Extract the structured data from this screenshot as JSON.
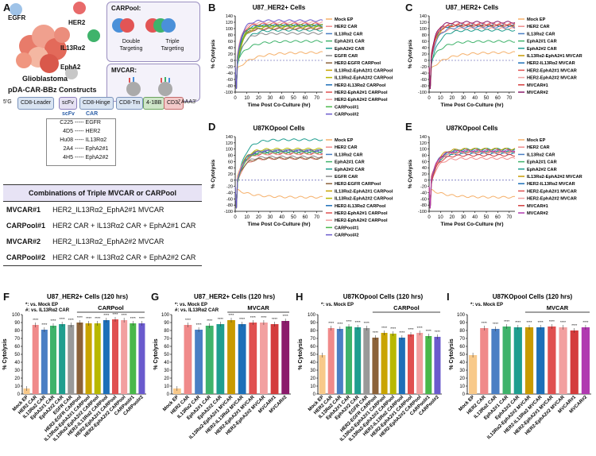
{
  "panel_letters": {
    "a": "A",
    "b": "B",
    "c": "C",
    "d": "D",
    "e": "E",
    "f": "F",
    "g": "G",
    "h": "H",
    "i": "I"
  },
  "schematic": {
    "antigens": {
      "egfr": "EGFR",
      "her2": "HER2",
      "il13": "IL13Rα2",
      "epha2": "EphA2"
    },
    "tumor_label": "Glioblastoma",
    "carpool_title": "CARPool:",
    "mvcar_title": "MVCAR:",
    "double_label": "Double\nTargeting",
    "triple_label": "Triple\nTargeting"
  },
  "construct": {
    "title": "pDA-CAR-BBz Constructs",
    "five": "5'G",
    "three": "AAA3'",
    "parts": [
      "CD8-Leader",
      "scFv",
      "CD8-Hinge",
      "CD8-Tm",
      "4-1BB",
      "CD3ζ"
    ],
    "scfv_header": "scFv",
    "car_header": "CAR",
    "pairs": [
      {
        "scfv": "C225",
        "car": "EGFR"
      },
      {
        "scfv": "4D5",
        "car": "HER2"
      },
      {
        "scfv": "Hu08",
        "car": "IL13Rα2"
      },
      {
        "scfv": "2A4",
        "car": "EphA2#1"
      },
      {
        "scfv": "4H5",
        "car": "EphA2#2"
      }
    ]
  },
  "combinations": {
    "title": "Combinations of Triple MVCAR or CARPool",
    "rows": [
      {
        "name": "MVCAR#1",
        "desc": "HER2_IL13Rα2_EphA2#1 MVCAR"
      },
      {
        "name": "CARPool#1",
        "desc": "HER2 CAR + IL13Rα2 CAR + EphA2#1 CAR"
      },
      {
        "name": "MVCAR#2",
        "desc": "HER2_IL13Rα2_EphA2#2 MVCAR"
      },
      {
        "name": "CARPool#2",
        "desc": "HER2 CAR + IL13Rα2 CAR + EphA2#2 CAR"
      }
    ]
  },
  "chart_data": [
    {
      "id": "B",
      "type": "line",
      "title": "U87_HER2+ Cells",
      "xlabel": "Time Post Co-Culture (hr)",
      "ylabel": "% Cytolysis",
      "xlim": [
        0,
        75
      ],
      "ylim": [
        -100,
        140
      ],
      "xticks": [
        0,
        10,
        20,
        30,
        40,
        50,
        60,
        70
      ],
      "yticks": [
        -100,
        -80,
        -60,
        -40,
        -20,
        0,
        20,
        40,
        60,
        80,
        100,
        120,
        140
      ],
      "series": [
        {
          "name": "Mock EP",
          "color": "#f5b06a",
          "plateau": 25,
          "rise": 30
        },
        {
          "name": "HER2 CAR",
          "color": "#f08a8a",
          "plateau": 100,
          "rise": 10
        },
        {
          "name": "IL13Rα2 CAR",
          "color": "#4a7fc4",
          "plateau": 105,
          "rise": 12
        },
        {
          "name": "EphA2#1 CAR",
          "color": "#3fb36b",
          "plateau": 60,
          "rise": 20
        },
        {
          "name": "EphA2#2 CAR",
          "color": "#1f9e8f",
          "plateau": 95,
          "rise": 14
        },
        {
          "name": "EGFR CAR",
          "color": "#888888",
          "plateau": 85,
          "rise": 12
        },
        {
          "name": "HER2-EGFR CARPool",
          "color": "#8c6239",
          "plateau": 100,
          "rise": 10
        },
        {
          "name": "IL13Rα2-EphA2#1 CARPool",
          "color": "#c9a400",
          "plateau": 110,
          "rise": 11
        },
        {
          "name": "IL13Rα2-EphA2#2 CARPool",
          "color": "#b8b800",
          "plateau": 105,
          "rise": 11
        },
        {
          "name": "HER2-IL13Rα2 CARPool",
          "color": "#1d6fb8",
          "plateau": 110,
          "rise": 9
        },
        {
          "name": "HER2-EphA2#1 CARPool",
          "color": "#e05050",
          "plateau": 115,
          "rise": 9
        },
        {
          "name": "HER2-EphA2#2 CARPool",
          "color": "#f2a0a0",
          "plateau": 120,
          "rise": 9
        },
        {
          "name": "CARPool#1",
          "color": "#49b84a",
          "plateau": 110,
          "rise": 10
        },
        {
          "name": "CARPool#2",
          "color": "#6a5acd",
          "plateau": 125,
          "rise": 9
        }
      ]
    },
    {
      "id": "C",
      "type": "line",
      "title": "U87_HER2+ Cells",
      "xlabel": "Time Post Co-Culture (hr)",
      "ylabel": "% Cytolysis",
      "xlim": [
        0,
        75
      ],
      "ylim": [
        -100,
        140
      ],
      "xticks": [
        0,
        10,
        20,
        30,
        40,
        50,
        60,
        70
      ],
      "yticks": [
        -100,
        -80,
        -60,
        -40,
        -20,
        0,
        20,
        40,
        60,
        80,
        100,
        120,
        140
      ],
      "series": [
        {
          "name": "Mock EP",
          "color": "#f5b06a",
          "plateau": 25,
          "rise": 30
        },
        {
          "name": "HER2 CAR",
          "color": "#f08a8a",
          "plateau": 100,
          "rise": 10
        },
        {
          "name": "IL13Rα2 CAR",
          "color": "#4a7fc4",
          "plateau": 105,
          "rise": 12
        },
        {
          "name": "EphA2#1 CAR",
          "color": "#3fb36b",
          "plateau": 60,
          "rise": 20
        },
        {
          "name": "EphA2#2 CAR",
          "color": "#1f9e8f",
          "plateau": 95,
          "rise": 14
        },
        {
          "name": "IL13Rα2-EphA2#1 MVCAR",
          "color": "#c89a00",
          "plateau": 110,
          "rise": 10
        },
        {
          "name": "HER2-IL13Rα2 MVCAR",
          "color": "#1d6fb8",
          "plateau": 110,
          "rise": 9
        },
        {
          "name": "HER2-EphA2#1 MVCAR",
          "color": "#e05050",
          "plateau": 115,
          "rise": 9
        },
        {
          "name": "HER2-EphA2#2 MVCAR",
          "color": "#f2a0a0",
          "plateau": 115,
          "rise": 9
        },
        {
          "name": "MVCAR#1",
          "color": "#d43c3c",
          "plateau": 110,
          "rise": 9
        },
        {
          "name": "MVCAR#2",
          "color": "#8b1a6b",
          "plateau": 120,
          "rise": 9
        }
      ]
    },
    {
      "id": "D",
      "type": "line",
      "title": "U87KOpool Cells",
      "xlabel": "Time Post Co-Culture (hr)",
      "ylabel": "% Cytolysis",
      "xlim": [
        0,
        75
      ],
      "ylim": [
        -100,
        140
      ],
      "xticks": [
        0,
        10,
        20,
        30,
        40,
        50,
        60,
        70
      ],
      "yticks": [
        -100,
        -80,
        -60,
        -40,
        -20,
        0,
        20,
        40,
        60,
        80,
        100,
        120,
        140
      ],
      "series": [
        {
          "name": "Mock EP",
          "color": "#f5b06a",
          "plateau": -55,
          "rise": 30
        },
        {
          "name": "HER2 CAR",
          "color": "#f08a8a",
          "plateau": 70,
          "rise": 12
        },
        {
          "name": "IL13Rα2 CAR",
          "color": "#4a7fc4",
          "plateau": 95,
          "rise": 12
        },
        {
          "name": "EphA2#1 CAR",
          "color": "#3fb36b",
          "plateau": 90,
          "rise": 14
        },
        {
          "name": "EphA2#2 CAR",
          "color": "#1f9e8f",
          "plateau": 130,
          "rise": 14
        },
        {
          "name": "EGFR CAR",
          "color": "#888888",
          "plateau": 75,
          "rise": 12
        },
        {
          "name": "HER2-EGFR CARPool",
          "color": "#8c6239",
          "plateau": 70,
          "rise": 12
        },
        {
          "name": "IL13Rα2-EphA2#1 CARPool",
          "color": "#c9a400",
          "plateau": 95,
          "rise": 12
        },
        {
          "name": "IL13Rα2-EphA2#2 CARPool",
          "color": "#b8b800",
          "plateau": 100,
          "rise": 12
        },
        {
          "name": "HER2-IL13Rα2 CARPool",
          "color": "#1d6fb8",
          "plateau": 90,
          "rise": 12
        },
        {
          "name": "HER2-EphA2#1 CARPool",
          "color": "#e05050",
          "plateau": 85,
          "rise": 12
        },
        {
          "name": "HER2-EphA2#2 CARPool",
          "color": "#f2a0a0",
          "plateau": 85,
          "rise": 12
        },
        {
          "name": "CARPool#1",
          "color": "#49b84a",
          "plateau": 90,
          "rise": 12
        },
        {
          "name": "CARPool#2",
          "color": "#6a5acd",
          "plateau": 95,
          "rise": 12
        }
      ]
    },
    {
      "id": "E",
      "type": "line",
      "title": "U87KOpool Cells",
      "xlabel": "Time Post Co-Culture (hr)",
      "ylabel": "% Cytolysis",
      "xlim": [
        0,
        75
      ],
      "ylim": [
        -100,
        140
      ],
      "xticks": [
        0,
        10,
        20,
        30,
        40,
        50,
        60,
        70
      ],
      "yticks": [
        -100,
        -80,
        -60,
        -40,
        -20,
        0,
        20,
        40,
        60,
        80,
        100,
        120,
        140
      ],
      "series": [
        {
          "name": "Mock EP",
          "color": "#f5b06a",
          "plateau": -55,
          "rise": 30
        },
        {
          "name": "HER2 CAR",
          "color": "#f08a8a",
          "plateau": 70,
          "rise": 12
        },
        {
          "name": "IL13Rα2 CAR",
          "color": "#4a7fc4",
          "plateau": 95,
          "rise": 12
        },
        {
          "name": "EphA2#1 CAR",
          "color": "#3fb36b",
          "plateau": 90,
          "rise": 14
        },
        {
          "name": "EphA2#2 CAR",
          "color": "#1f9e8f",
          "plateau": 100,
          "rise": 14
        },
        {
          "name": "IL13Rα2-EphA2#2 MVCAR",
          "color": "#c89a00",
          "plateau": 100,
          "rise": 12
        },
        {
          "name": "HER2-IL13Rα2 MVCAR",
          "color": "#1d6fb8",
          "plateau": 85,
          "rise": 12
        },
        {
          "name": "HER2-EphA2#1 MVCAR",
          "color": "#e05050",
          "plateau": 90,
          "rise": 12
        },
        {
          "name": "HER2-EphA2#2 MVCAR",
          "color": "#f2a0a0",
          "plateau": 90,
          "rise": 12
        },
        {
          "name": "MVCAR#1",
          "color": "#d43c3c",
          "plateau": 80,
          "rise": 12
        },
        {
          "name": "MVCAR#2",
          "color": "#b03ab0",
          "plateau": 95,
          "rise": 12
        }
      ]
    },
    {
      "id": "F",
      "type": "bar",
      "title": "U87_HER2+ Cells (120 hrs)",
      "ylabel": "% Cytolysis",
      "ylim": [
        0,
        100
      ],
      "yticks": [
        0,
        10,
        20,
        30,
        40,
        50,
        60,
        70,
        80,
        90,
        100
      ],
      "notes": [
        "*: vs. Mock EP",
        "#: vs. IL13Rα2 CAR"
      ],
      "group_label": "CARPool",
      "categories": [
        "Mock EP",
        "HER2 CAR",
        "IL13Rα2 CAR",
        "EphA2#1 CAR",
        "EphA2#2 CAR",
        "EGFR CAR",
        "HER2-EGFR CARPool",
        "IL13Rα2-EphA2#1 CARPool",
        "IL13Rα2-EphA2#2 CARPool",
        "HER2-IL13Rα2 CARPool",
        "HER2-EphA2#1 CARPool",
        "HER2-EphA2#2 CARPool",
        "CARPool#1",
        "CARPool#2"
      ],
      "values": [
        7,
        87,
        81,
        86,
        88,
        87,
        90,
        89,
        89,
        93,
        94,
        93,
        89,
        89
      ],
      "colors": [
        "#f8c98a",
        "#f08a8a",
        "#4a7fc4",
        "#3fb36b",
        "#1f9e8f",
        "#999999",
        "#8c6239",
        "#c9a400",
        "#b8b800",
        "#1d6fb8",
        "#e05050",
        "#f2a0a0",
        "#49b84a",
        "#6a5acd"
      ]
    },
    {
      "id": "G",
      "type": "bar",
      "title": "U87_HER2+ Cells (120 hrs)",
      "ylabel": "% Cytolysis",
      "ylim": [
        0,
        100
      ],
      "yticks": [
        0,
        10,
        20,
        30,
        40,
        50,
        60,
        70,
        80,
        90,
        100
      ],
      "notes": [
        "*: vs. Mock EP",
        "#: vs. IL13Rα2 CAR"
      ],
      "group_label": "MVCAR",
      "categories": [
        "Mock EP",
        "HER2 CAR",
        "IL13Rα2 CAR",
        "EphA2#1 CAR",
        "EphA2#2 CAR",
        "IL13Rα2-EphA2#1 MVCAR",
        "HER2-IL13Rα2 MVCAR",
        "HER2-EphA2#1 MVCAR",
        "HER2-EphA2#2 MVCAR",
        "MVCAR#1",
        "MVCAR#2"
      ],
      "values": [
        7,
        87,
        81,
        86,
        88,
        93,
        88,
        90,
        90,
        88,
        92
      ],
      "colors": [
        "#f8c98a",
        "#f08a8a",
        "#4a7fc4",
        "#3fb36b",
        "#1f9e8f",
        "#c89a00",
        "#1d6fb8",
        "#e05050",
        "#f2a0a0",
        "#d43c3c",
        "#8b1a6b"
      ]
    },
    {
      "id": "H",
      "type": "bar",
      "title": "U87KOpool Cells (120 hrs)",
      "ylabel": "% Cytolysis",
      "ylim": [
        0,
        100
      ],
      "yticks": [
        0,
        10,
        20,
        30,
        40,
        50,
        60,
        70,
        80,
        90,
        100
      ],
      "notes": [
        "*: vs. Mock EP"
      ],
      "group_label": "CARPool",
      "categories": [
        "Mock EP",
        "HER2 CAR",
        "IL13Rα2 CAR",
        "EphA2#1 CAR",
        "EphA2#2 CAR",
        "EGFR CAR",
        "HER2-EGFR CARPool",
        "IL13Rα2-EphA2#1 CARPool",
        "IL13Rα2-EphA2#2 CARPool",
        "HER2-IL13Rα2 CARPool",
        "HER2-EphA2#1 CARPool",
        "HER2-EphA2#2 CARPool",
        "CARPool#1",
        "CARPool#2"
      ],
      "values": [
        49,
        83,
        82,
        85,
        84,
        83,
        71,
        77,
        76,
        71,
        75,
        77,
        73,
        72
      ],
      "colors": [
        "#f8c98a",
        "#f08a8a",
        "#4a7fc4",
        "#3fb36b",
        "#1f9e8f",
        "#999999",
        "#8c6239",
        "#c9a400",
        "#b8b800",
        "#1d6fb8",
        "#e05050",
        "#f2a0a0",
        "#49b84a",
        "#6a5acd"
      ]
    },
    {
      "id": "I",
      "type": "bar",
      "title": "U87KOpool Cells (120 hrs)",
      "ylabel": "% Cytolysis",
      "ylim": [
        0,
        100
      ],
      "yticks": [
        0,
        10,
        20,
        30,
        40,
        50,
        60,
        70,
        80,
        90,
        100
      ],
      "notes": [
        "*: vs. Mock EP"
      ],
      "group_label": "MVCAR",
      "categories": [
        "Mock EP",
        "HER2 CAR",
        "IL13Rα2 CAR",
        "EphA2#1 CAR",
        "EphA2#2 CAR",
        "IL13Rα2-EphA2#2 MVCAR",
        "HER2-IL13Rα2 MVCAR",
        "HER2-EphA2#1 MVCAR",
        "HER2-EphA2#2 MVCAR",
        "MVCAR#1",
        "MVCAR#2"
      ],
      "values": [
        49,
        83,
        82,
        85,
        84,
        84,
        84,
        85,
        84,
        80,
        84
      ],
      "colors": [
        "#f8c98a",
        "#f08a8a",
        "#4a7fc4",
        "#3fb36b",
        "#1f9e8f",
        "#c89a00",
        "#1d6fb8",
        "#e05050",
        "#f2a0a0",
        "#d43c3c",
        "#b03ab0"
      ]
    }
  ]
}
